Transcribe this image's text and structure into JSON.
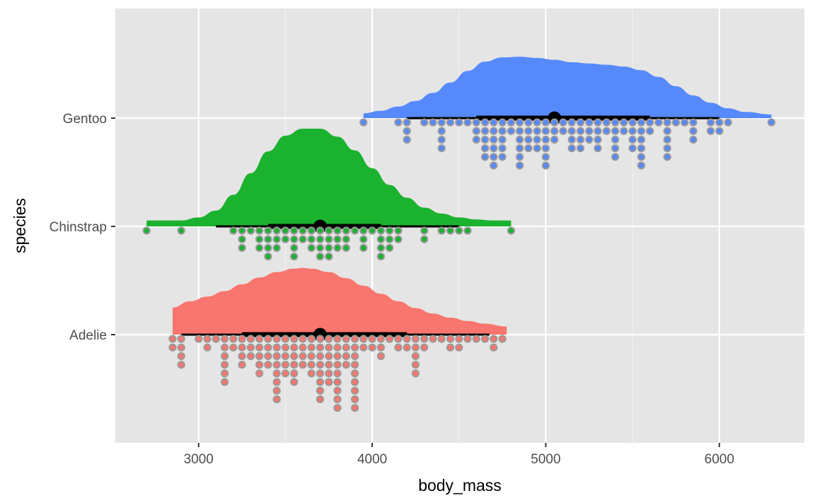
{
  "chart_data": {
    "type": "raincloud",
    "title": "",
    "xlabel": "body_mass",
    "ylabel": "species",
    "xlim": [
      2520,
      6490
    ],
    "x_ticks": [
      3000,
      4000,
      5000,
      6000
    ],
    "x_tick_labels": [
      "3000",
      "4000",
      "5000",
      "6000"
    ],
    "categories": [
      "Adelie",
      "Chinstrap",
      "Gentoo"
    ],
    "grid": true,
    "legend": "none",
    "dot_binwidth": 50,
    "series": [
      {
        "category": "Adelie",
        "color": "#F8766D",
        "density_x": [
          2850,
          2950,
          3050,
          3150,
          3250,
          3350,
          3450,
          3550,
          3600,
          3650,
          3750,
          3850,
          3950,
          4050,
          4150,
          4250,
          4350,
          4450,
          4550,
          4650,
          4775
        ],
        "density_y": [
          0.4,
          0.49,
          0.56,
          0.64,
          0.74,
          0.84,
          0.92,
          0.97,
          0.98,
          0.97,
          0.92,
          0.83,
          0.72,
          0.6,
          0.49,
          0.39,
          0.31,
          0.25,
          0.2,
          0.16,
          0.12
        ],
        "density_scale": 0.62,
        "median": 3700,
        "q1": 3250,
        "q3": 4200,
        "whisker_low": 2900,
        "whisker_high": 4675,
        "dot_bins": [
          [
            2850,
            2
          ],
          [
            2900,
            4
          ],
          [
            3000,
            1
          ],
          [
            3050,
            2
          ],
          [
            3100,
            1
          ],
          [
            3150,
            6
          ],
          [
            3200,
            2
          ],
          [
            3250,
            4
          ],
          [
            3300,
            3
          ],
          [
            3350,
            5
          ],
          [
            3400,
            4
          ],
          [
            3450,
            8
          ],
          [
            3500,
            5
          ],
          [
            3550,
            6
          ],
          [
            3600,
            4
          ],
          [
            3650,
            5
          ],
          [
            3700,
            8
          ],
          [
            3750,
            6
          ],
          [
            3800,
            9
          ],
          [
            3850,
            4
          ],
          [
            3900,
            9
          ],
          [
            3950,
            2
          ],
          [
            4000,
            2
          ],
          [
            4050,
            3
          ],
          [
            4100,
            1
          ],
          [
            4150,
            2
          ],
          [
            4200,
            2
          ],
          [
            4250,
            5
          ],
          [
            4300,
            2
          ],
          [
            4350,
            1
          ],
          [
            4400,
            1
          ],
          [
            4450,
            2
          ],
          [
            4500,
            2
          ],
          [
            4550,
            1
          ],
          [
            4600,
            1
          ],
          [
            4650,
            1
          ],
          [
            4700,
            2
          ],
          [
            4750,
            1
          ]
        ]
      },
      {
        "category": "Chinstrap",
        "color": "#1BB22F",
        "density_x": [
          2700,
          2800,
          2900,
          3000,
          3100,
          3200,
          3300,
          3400,
          3500,
          3600,
          3700,
          3800,
          3900,
          4000,
          4100,
          4200,
          4300,
          4400,
          4500,
          4600,
          4700,
          4800
        ],
        "density_y": [
          0.06,
          0.06,
          0.06,
          0.09,
          0.16,
          0.32,
          0.54,
          0.76,
          0.92,
          0.99,
          0.99,
          0.91,
          0.77,
          0.59,
          0.42,
          0.29,
          0.19,
          0.13,
          0.09,
          0.07,
          0.06,
          0.06
        ],
        "density_scale": 0.9,
        "median": 3700,
        "q1": 3400,
        "q3": 4050,
        "whisker_low": 3100,
        "whisker_high": 4500,
        "dot_bins": [
          [
            2700,
            1
          ],
          [
            2900,
            1
          ],
          [
            3200,
            1
          ],
          [
            3250,
            3
          ],
          [
            3300,
            1
          ],
          [
            3350,
            3
          ],
          [
            3400,
            4
          ],
          [
            3450,
            3
          ],
          [
            3500,
            2
          ],
          [
            3550,
            4
          ],
          [
            3600,
            2
          ],
          [
            3650,
            3
          ],
          [
            3700,
            4
          ],
          [
            3750,
            4
          ],
          [
            3800,
            3
          ],
          [
            3850,
            3
          ],
          [
            3900,
            1
          ],
          [
            3950,
            3
          ],
          [
            4000,
            1
          ],
          [
            4050,
            4
          ],
          [
            4100,
            3
          ],
          [
            4150,
            2
          ],
          [
            4300,
            2
          ],
          [
            4400,
            1
          ],
          [
            4450,
            1
          ],
          [
            4500,
            1
          ],
          [
            4550,
            1
          ],
          [
            4800,
            1
          ]
        ]
      },
      {
        "category": "Gentoo",
        "color": "#5689FB",
        "density_x": [
          3950,
          4050,
          4150,
          4250,
          4350,
          4450,
          4550,
          4650,
          4750,
          4850,
          4950,
          5050,
          5150,
          5250,
          5350,
          5450,
          5550,
          5650,
          5750,
          5850,
          5950,
          6050,
          6150,
          6300
        ],
        "density_y": [
          0.08,
          0.12,
          0.19,
          0.28,
          0.41,
          0.58,
          0.77,
          0.92,
          0.99,
          1.0,
          0.98,
          0.95,
          0.91,
          0.89,
          0.87,
          0.84,
          0.78,
          0.67,
          0.52,
          0.37,
          0.25,
          0.16,
          0.1,
          0.06
        ],
        "density_scale": 0.56,
        "median": 5050,
        "q1": 4600,
        "q3": 5600,
        "whisker_low": 4200,
        "whisker_high": 6000,
        "dot_bins": [
          [
            3950,
            1
          ],
          [
            4150,
            1
          ],
          [
            4200,
            3
          ],
          [
            4300,
            1
          ],
          [
            4350,
            1
          ],
          [
            4400,
            4
          ],
          [
            4450,
            1
          ],
          [
            4500,
            1
          ],
          [
            4550,
            1
          ],
          [
            4600,
            3
          ],
          [
            4650,
            5
          ],
          [
            4700,
            6
          ],
          [
            4750,
            5
          ],
          [
            4800,
            2
          ],
          [
            4850,
            6
          ],
          [
            4900,
            4
          ],
          [
            4950,
            4
          ],
          [
            5000,
            6
          ],
          [
            5050,
            3
          ],
          [
            5100,
            2
          ],
          [
            5150,
            4
          ],
          [
            5200,
            4
          ],
          [
            5250,
            3
          ],
          [
            5300,
            4
          ],
          [
            5350,
            2
          ],
          [
            5400,
            5
          ],
          [
            5450,
            2
          ],
          [
            5500,
            4
          ],
          [
            5550,
            6
          ],
          [
            5600,
            2
          ],
          [
            5650,
            1
          ],
          [
            5700,
            5
          ],
          [
            5750,
            1
          ],
          [
            5800,
            1
          ],
          [
            5850,
            3
          ],
          [
            5950,
            2
          ],
          [
            6000,
            2
          ],
          [
            6050,
            1
          ],
          [
            6300,
            1
          ]
        ]
      }
    ]
  }
}
